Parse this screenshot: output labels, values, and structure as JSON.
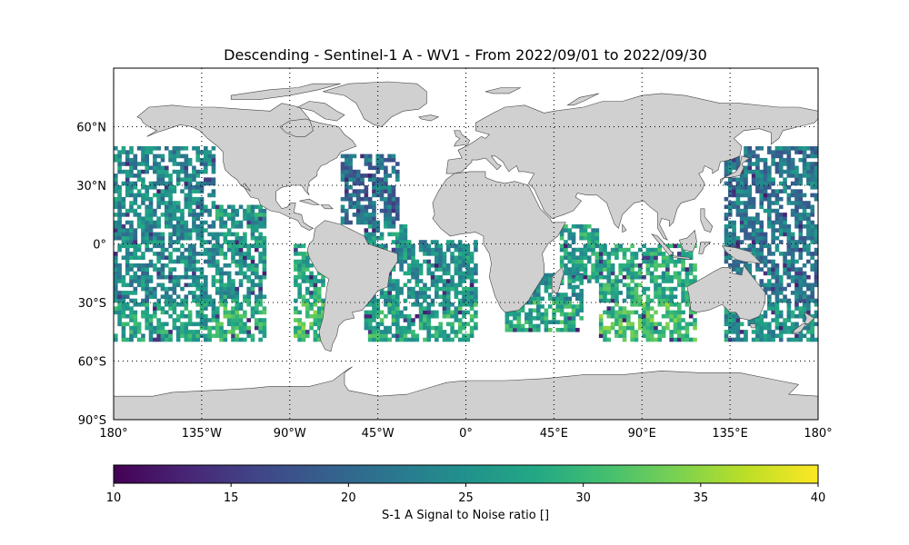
{
  "title": "Descending - Sentinel-1 A - WV1 - From 2022/09/01 to 2022/09/30",
  "map": {
    "projection": "plate-carree",
    "lon_range": [
      -180,
      180
    ],
    "lat_range": [
      -90,
      90
    ],
    "land_color": "#d0d0d0",
    "coastline_color": "#444444",
    "grid": "dotted",
    "lon_ticks": [
      {
        "value": -180,
        "label": "180°"
      },
      {
        "value": -135,
        "label": "135°W"
      },
      {
        "value": -90,
        "label": "90°W"
      },
      {
        "value": -45,
        "label": "45°W"
      },
      {
        "value": 0,
        "label": "0°"
      },
      {
        "value": 45,
        "label": "45°E"
      },
      {
        "value": 90,
        "label": "90°E"
      },
      {
        "value": 135,
        "label": "135°E"
      },
      {
        "value": 180,
        "label": "180°"
      }
    ],
    "lat_ticks": [
      {
        "value": 60,
        "label": "60°N"
      },
      {
        "value": 30,
        "label": "30°N"
      },
      {
        "value": 0,
        "label": "0°"
      },
      {
        "value": -30,
        "label": "30°S"
      },
      {
        "value": -60,
        "label": "60°S"
      },
      {
        "value": -90,
        "label": "90°S"
      }
    ]
  },
  "colorbar": {
    "label": "S-1 A Signal to Noise ratio []",
    "colormap": "viridis",
    "min": 10,
    "max": 40,
    "ticks": [
      {
        "value": 10,
        "label": "10"
      },
      {
        "value": 15,
        "label": "15"
      },
      {
        "value": 20,
        "label": "20"
      },
      {
        "value": 25,
        "label": "25"
      },
      {
        "value": 30,
        "label": "30"
      },
      {
        "value": 35,
        "label": "35"
      },
      {
        "value": 40,
        "label": "40"
      }
    ]
  },
  "chart_data": {
    "type": "heatmap",
    "title": "Descending - Sentinel-1 A - WV1 - From 2022/09/01 to 2022/09/30",
    "variable": "S-1 A Signal to Noise ratio []",
    "value_range": [
      10,
      40
    ],
    "lat_extent_of_data": [
      -50,
      50
    ],
    "grid_cell_degrees": 2,
    "swath_regions": [
      {
        "lon": [
          -180,
          -128
        ],
        "lat": [
          -50,
          50
        ],
        "typical_value": 24
      },
      {
        "lon": [
          -128,
          -102
        ],
        "lat": [
          -50,
          20
        ],
        "typical_value": 26
      },
      {
        "lon": [
          -88,
          -72
        ],
        "lat": [
          -50,
          0
        ],
        "typical_value": 28
      },
      {
        "lon": [
          -64,
          -34
        ],
        "lat": [
          10,
          45
        ],
        "typical_value": 21
      },
      {
        "lon": [
          -52,
          -30
        ],
        "lat": [
          -50,
          10
        ],
        "typical_value": 25
      },
      {
        "lon": [
          -30,
          6
        ],
        "lat": [
          -50,
          2
        ],
        "typical_value": 25
      },
      {
        "lon": [
          20,
          60
        ],
        "lat": [
          -45,
          -15
        ],
        "typical_value": 25
      },
      {
        "lon": [
          48,
          68
        ],
        "lat": [
          -20,
          10
        ],
        "typical_value": 27
      },
      {
        "lon": [
          68,
          118
        ],
        "lat": [
          -50,
          0
        ],
        "typical_value": 28
      },
      {
        "lon": [
          132,
          180
        ],
        "lat": [
          -50,
          50
        ],
        "typical_value": 22
      }
    ]
  }
}
